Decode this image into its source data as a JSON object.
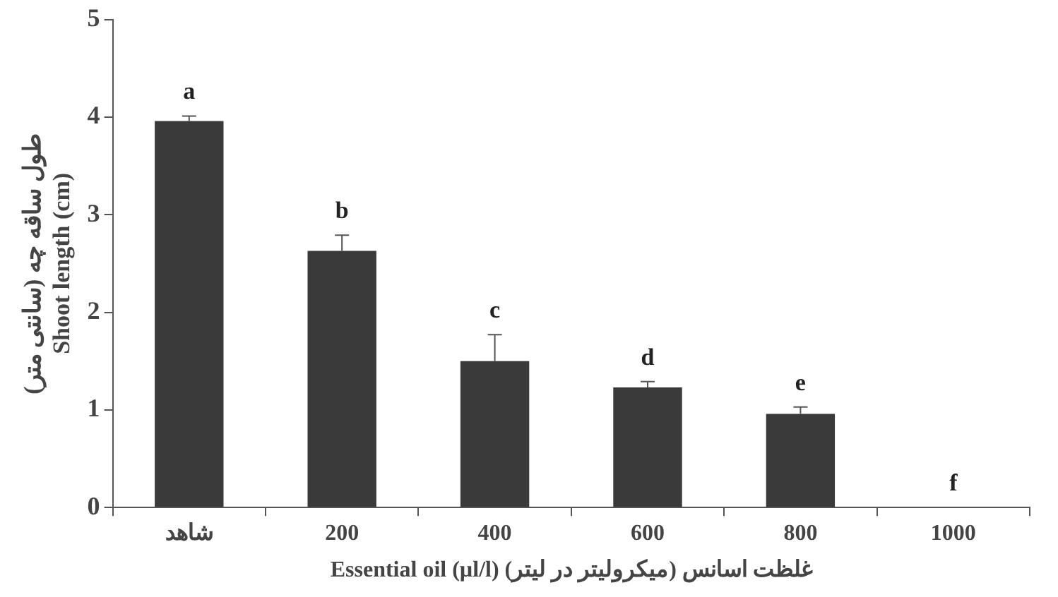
{
  "chart_data": {
    "type": "bar",
    "categories": [
      "شاهد",
      "200",
      "400",
      "600",
      "800",
      "1000"
    ],
    "values": [
      3.96,
      2.63,
      1.5,
      1.23,
      0.96,
      0
    ],
    "errors": [
      [
        3.96,
        4.01
      ],
      [
        2.63,
        2.79
      ],
      [
        1.5,
        1.77
      ],
      [
        1.23,
        1.29
      ],
      [
        0.96,
        1.03
      ],
      null
    ],
    "color": "#3a3a3a",
    "ylim": [
      0,
      5
    ],
    "yticks": [
      0,
      1,
      2,
      3,
      4,
      5
    ],
    "ylabel": "طول ساقه چه (سانتی متر)\nShoot length (cm)",
    "xlabel": "Essential oil (µl/l) غلظت اسانس (میکرولیتر در لیتر)",
    "grid": false,
    "legend": false,
    "annotations": [
      "a",
      "b",
      "c",
      "d",
      "e",
      "f"
    ]
  }
}
